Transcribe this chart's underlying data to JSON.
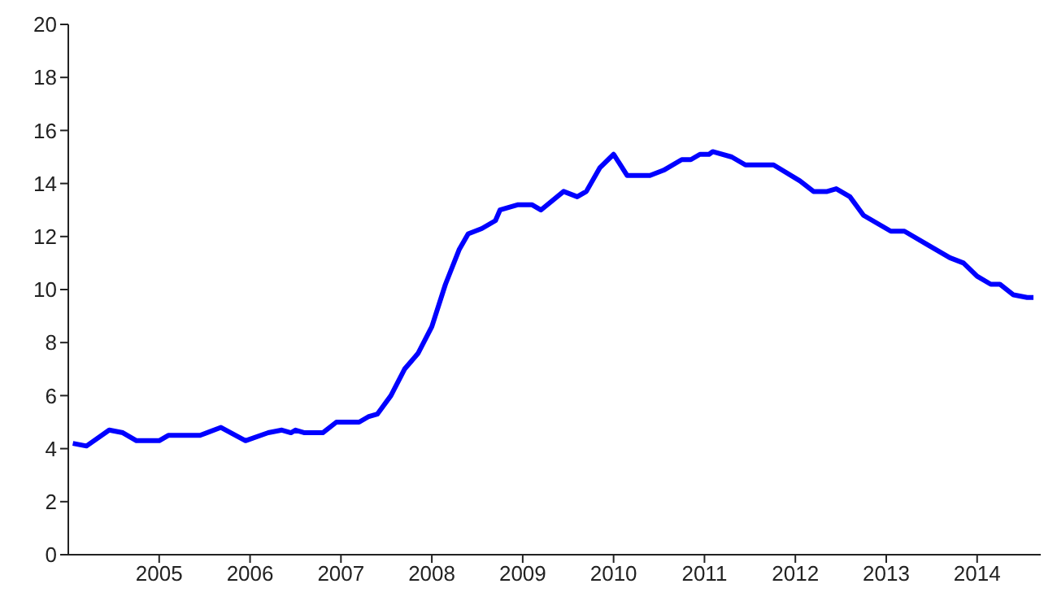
{
  "chart_data": {
    "type": "line",
    "xlim": [
      2004,
      2014.7
    ],
    "xticks": [
      2005,
      2006,
      2007,
      2008,
      2009,
      2010,
      2011,
      2012,
      2013,
      2014
    ],
    "ylim": [
      0,
      20
    ],
    "yticks": [
      0,
      2,
      4,
      6,
      8,
      10,
      12,
      14,
      16,
      18,
      20
    ],
    "grid": false,
    "legend": false,
    "marker": "none",
    "x": [
      2004.05,
      2004.2,
      2004.45,
      2004.6,
      2004.75,
      2005.0,
      2005.1,
      2005.45,
      2005.68,
      2005.95,
      2006.2,
      2006.35,
      2006.45,
      2006.5,
      2006.6,
      2006.8,
      2006.95,
      2007.2,
      2007.3,
      2007.4,
      2007.55,
      2007.7,
      2007.85,
      2008.0,
      2008.15,
      2008.3,
      2008.4,
      2008.55,
      2008.7,
      2008.75,
      2008.95,
      2009.1,
      2009.2,
      2009.45,
      2009.6,
      2009.7,
      2009.85,
      2010.0,
      2010.15,
      2010.4,
      2010.55,
      2010.75,
      2010.85,
      2010.95,
      2011.05,
      2011.09,
      2011.3,
      2011.45,
      2011.76,
      2012.05,
      2012.2,
      2012.35,
      2012.45,
      2012.6,
      2012.75,
      2012.95,
      2013.05,
      2013.2,
      2013.45,
      2013.7,
      2013.85,
      2014.0,
      2014.15,
      2014.25,
      2014.4,
      2014.55,
      2014.62
    ],
    "series": [
      {
        "color": "#0000ff",
        "values": [
          4.2,
          4.1,
          4.7,
          4.6,
          4.3,
          4.3,
          4.5,
          4.5,
          4.8,
          4.3,
          4.6,
          4.7,
          4.6,
          4.7,
          4.6,
          4.6,
          5.0,
          5.0,
          5.2,
          5.3,
          6.0,
          7.0,
          7.6,
          8.6,
          10.2,
          11.5,
          12.1,
          12.3,
          12.6,
          13.0,
          13.2,
          13.2,
          13.0,
          13.7,
          13.5,
          13.7,
          14.6,
          15.1,
          14.3,
          14.3,
          14.5,
          14.9,
          14.9,
          15.1,
          15.1,
          15.2,
          15.0,
          14.7,
          14.7,
          14.1,
          13.7,
          13.7,
          13.8,
          13.5,
          12.8,
          12.4,
          12.2,
          12.2,
          11.7,
          11.2,
          11.0,
          10.5,
          10.2,
          10.2,
          9.8,
          9.7,
          9.7
        ]
      }
    ]
  }
}
